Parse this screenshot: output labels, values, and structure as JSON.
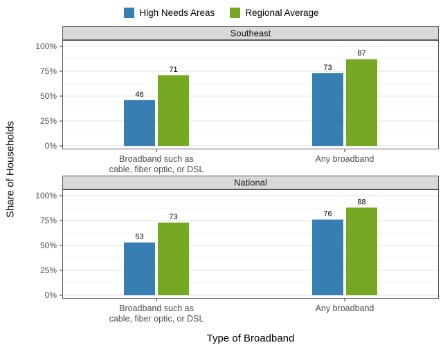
{
  "legend": {
    "items": [
      {
        "label": "High Needs Areas",
        "color": "#377EB2"
      },
      {
        "label": "Regional Average",
        "color": "#76A823"
      }
    ]
  },
  "chart_data": {
    "type": "bar",
    "title": "",
    "xlabel": "Type of Broadband",
    "ylabel": "Share of Households",
    "ylim": [
      0,
      100
    ],
    "y_tick_values": [
      0,
      25,
      50,
      75,
      100
    ],
    "y_tick_labels": [
      "0%",
      "25%",
      "50%",
      "75%",
      "100%"
    ],
    "minor_grid_step": 12.5,
    "grid": "horizontal major+minor",
    "legend_position": "top",
    "bar_value_labels": true,
    "categories": [
      "Broadband such as cable, fiber optic, or DSL",
      "Any broadband"
    ],
    "category_label_lines": [
      [
        "Broadband such as",
        "cable, fiber optic, or DSL"
      ],
      [
        "Any broadband"
      ]
    ],
    "series_names": [
      "High Needs Areas",
      "Regional Average"
    ],
    "series_colors": {
      "High Needs Areas": "#377EB2",
      "Regional Average": "#76A823"
    },
    "facets": [
      {
        "name": "Southeast",
        "series": [
          {
            "name": "High Needs Areas",
            "values": [
              46,
              73
            ]
          },
          {
            "name": "Regional Average",
            "values": [
              71,
              87
            ]
          }
        ]
      },
      {
        "name": "National",
        "series": [
          {
            "name": "High Needs Areas",
            "values": [
              53,
              76
            ]
          },
          {
            "name": "Regional Average",
            "values": [
              73,
              88
            ]
          }
        ]
      }
    ]
  },
  "colors": {
    "strip_bg": "#D9D9D9",
    "panel_border": "#595959",
    "grid_major": "#E2E2E2",
    "grid_minor": "#F1F1F1",
    "tick": "#333333",
    "axis_text": "#4D4D4D",
    "strip_text": "#1A1A1A",
    "value_label": "#000000"
  }
}
